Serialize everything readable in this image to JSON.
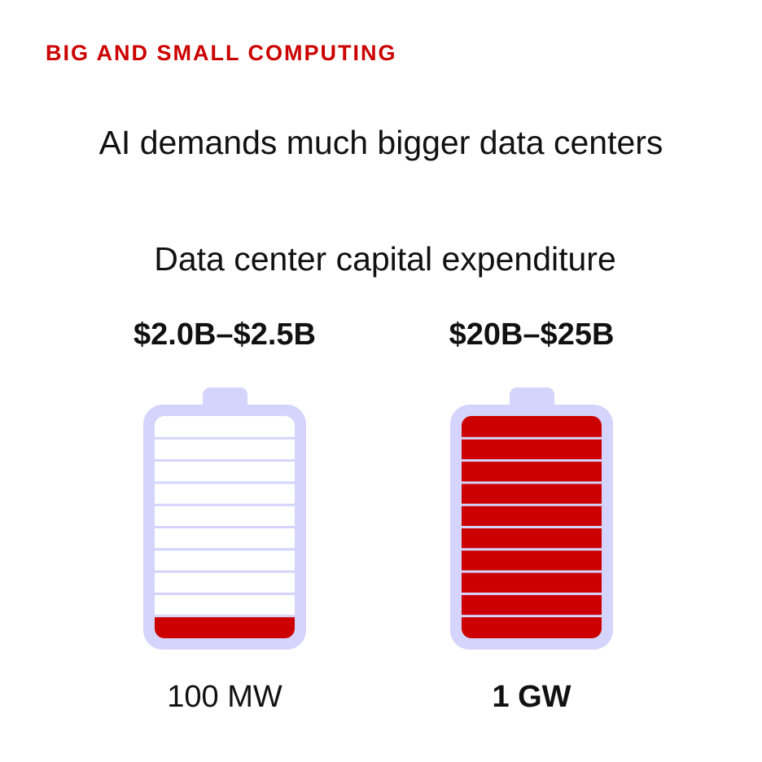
{
  "kicker": "BIG AND SMALL COMPUTING",
  "title": "AI demands much bigger data centers",
  "chart_data": {
    "type": "bar",
    "title": "Data center capital expenditure",
    "categories": [
      "100 MW",
      "1 GW"
    ],
    "value_labels": [
      "$2.0B–$2.5B",
      "$20B–$25B"
    ],
    "segments_total": 10,
    "values": [
      1,
      10
    ],
    "colors": {
      "fill": "#cc0000",
      "battery": "#d4d4fc",
      "empty": "#ffffff"
    }
  }
}
